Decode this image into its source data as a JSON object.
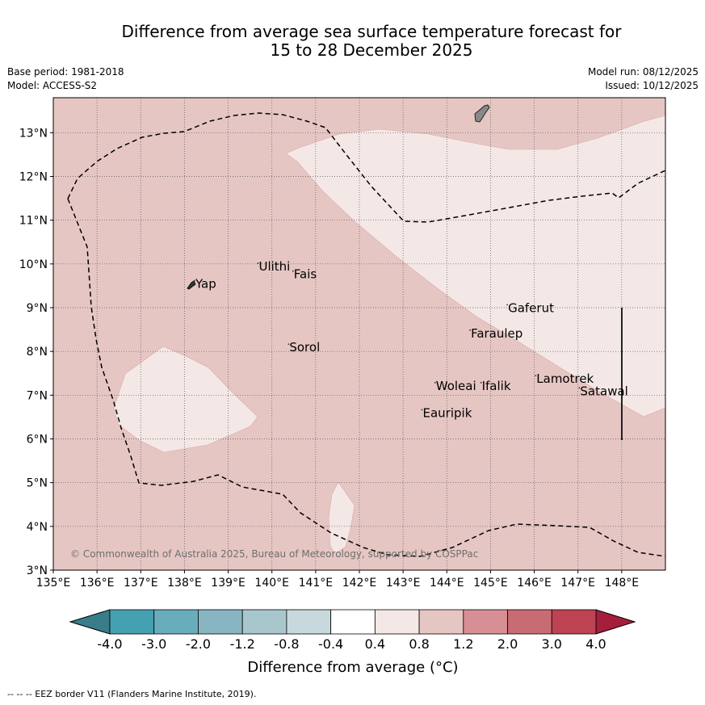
{
  "title_line1": "Difference from average sea surface temperature forecast for",
  "title_line2": "15 to 28 December 2025",
  "base_period": "Base period: 1981-2018",
  "model": "Model: ACCESS-S2",
  "model_run": "Model run: 08/12/2025",
  "issued": "Issued: 10/12/2025",
  "copyright": "© Commonwealth of Australia 2025, Bureau of Meteorology, supported by COSPPac",
  "footer": "--  --  -- EEZ border V11 (Flanders Marine Institute, 2019).",
  "colorbar_label": "Difference from average (°C)",
  "colors": {
    "background_anomaly": "#e6c6c3",
    "near_zero_patch": "#f4e8e7",
    "land": "#888888"
  },
  "map": {
    "lon_range": [
      135,
      149
    ],
    "lat_range": [
      3,
      13.8
    ],
    "x_ticks": [
      "135°E",
      "136°E",
      "137°E",
      "138°E",
      "139°E",
      "140°E",
      "141°E",
      "142°E",
      "143°E",
      "144°E",
      "145°E",
      "146°E",
      "147°E",
      "148°E"
    ],
    "y_ticks": [
      "3°N",
      "4°N",
      "5°N",
      "6°N",
      "7°N",
      "8°N",
      "9°N",
      "10°N",
      "11°N",
      "12°N",
      "13°N"
    ],
    "places": [
      {
        "name": "Ulithi",
        "lon": 139.7,
        "lat": 9.85
      },
      {
        "name": "Fais",
        "lon": 140.5,
        "lat": 9.67
      },
      {
        "name": "Yap",
        "lon": 138.25,
        "lat": 9.45
      },
      {
        "name": "Gaferut",
        "lon": 145.4,
        "lat": 8.9
      },
      {
        "name": "Faraulep",
        "lon": 144.55,
        "lat": 8.32
      },
      {
        "name": "Sorol",
        "lon": 140.4,
        "lat": 8.0
      },
      {
        "name": "Lamotrek",
        "lon": 146.05,
        "lat": 7.28
      },
      {
        "name": "Woleai",
        "lon": 143.75,
        "lat": 7.12
      },
      {
        "name": "Ifalik",
        "lon": 144.8,
        "lat": 7.12
      },
      {
        "name": "Satawal",
        "lon": 147.05,
        "lat": 7.0
      },
      {
        "name": "Eauripik",
        "lon": 143.45,
        "lat": 6.5
      }
    ]
  },
  "colorbar": {
    "ticks": [
      "-4.0",
      "-3.0",
      "-2.0",
      "-1.2",
      "-0.8",
      "-0.4",
      "0.4",
      "0.8",
      "1.2",
      "2.0",
      "3.0",
      "4.0"
    ],
    "colors": [
      "#45a0b1",
      "#68adbb",
      "#87b6c2",
      "#a8c7cd",
      "#c7d9dc",
      "#ffffff",
      "#f4e8e7",
      "#e6c6c3",
      "#d68f94",
      "#c96b73",
      "#bd4352"
    ],
    "under_color": "#3a7d8a",
    "over_color": "#a51e3b"
  }
}
